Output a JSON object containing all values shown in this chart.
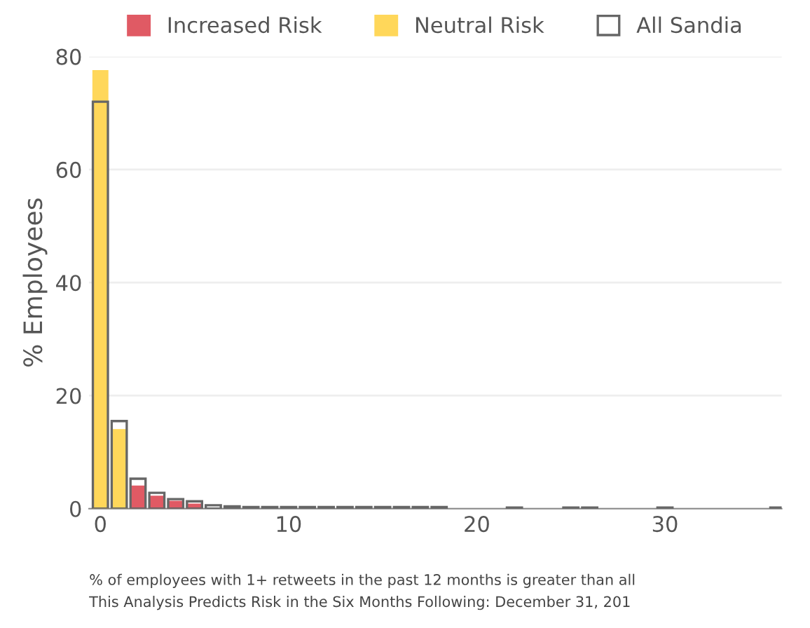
{
  "chart_data": {
    "type": "bar",
    "ylabel": "% Employees",
    "xlim": [
      -0.6,
      36.2
    ],
    "xticks": [
      0,
      10,
      20,
      30
    ],
    "ylim": [
      0,
      80
    ],
    "yticks": [
      0,
      20,
      40,
      60,
      80
    ],
    "grid": "y",
    "legend": "top",
    "series": [
      {
        "name": "Increased Risk",
        "color": "#e05a64",
        "x": [
          2,
          3,
          4,
          5
        ],
        "values": [
          4,
          2.2,
          1.3,
          0.8
        ]
      },
      {
        "name": "Neutral Risk",
        "color": "#ffd75a",
        "x": [
          0,
          1
        ],
        "values": [
          77.5,
          14
        ]
      },
      {
        "name": "All Sandia",
        "color": "#666666",
        "x": [
          0,
          1,
          2,
          3,
          4,
          5,
          6,
          7,
          8,
          9,
          10,
          11,
          12,
          13,
          14,
          15,
          16,
          17,
          18,
          22,
          25,
          26,
          30,
          36
        ],
        "values": [
          72,
          15.5,
          5.3,
          2.8,
          1.7,
          1.3,
          0.6,
          0.4,
          0.3,
          0.3,
          0.3,
          0.3,
          0.3,
          0.3,
          0.3,
          0.3,
          0.3,
          0.3,
          0.3,
          0.2,
          0.2,
          0.2,
          0.2,
          0.2
        ]
      }
    ],
    "annotations": [
      "% of employees with 1+ retweets in the past 12 months is greater than all",
      "This Analysis Predicts Risk in the Six Months Following: December 31, 201"
    ]
  }
}
